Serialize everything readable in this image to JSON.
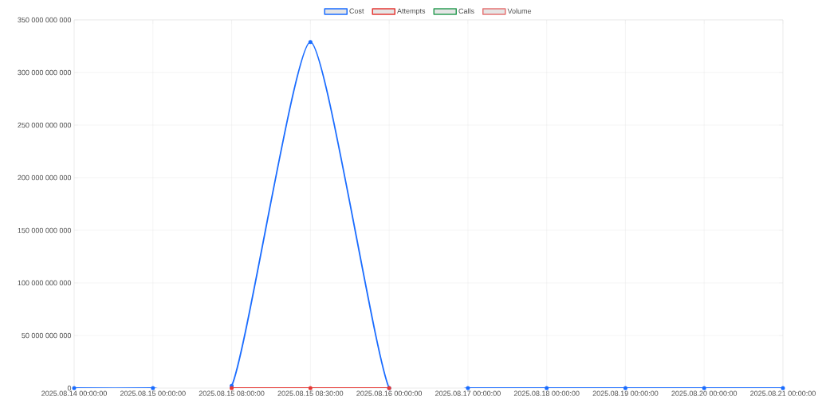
{
  "chart_data": {
    "type": "line",
    "categories": [
      "2025.08.14 00:00:00",
      "2025.08.15 00:00:00",
      "2025.08.15 08:00:00",
      "2025.08.15 08:30:00",
      "2025.08.16 00:00:00",
      "2025.08.17 00:00:00",
      "2025.08.18 00:00:00",
      "2025.08.19 00:00:00",
      "2025.08.20 00:00:00",
      "2025.08.21 00:00:00"
    ],
    "series": [
      {
        "name": "Cost",
        "color": "#1a6cff",
        "values": [
          0,
          0,
          2000000000,
          329000000000,
          0,
          0,
          0,
          0,
          0,
          0
        ]
      },
      {
        "name": "Attempts",
        "color": "#e53935",
        "values": [
          null,
          null,
          0,
          0,
          0,
          null,
          null,
          null,
          null,
          null
        ]
      },
      {
        "name": "Calls",
        "color": "#2e9e57",
        "values": [
          null,
          null,
          null,
          null,
          null,
          null,
          null,
          null,
          null,
          null
        ]
      },
      {
        "name": "Volume",
        "color": "#e57373",
        "values": [
          null,
          null,
          null,
          null,
          null,
          null,
          null,
          null,
          null,
          null
        ]
      }
    ],
    "ylim": [
      0,
      350000000000
    ],
    "yticks": [
      {
        "value": 0,
        "label": "0"
      },
      {
        "value": 50000000000,
        "label": "50 000 000 000"
      },
      {
        "value": 100000000000,
        "label": "100 000 000 000"
      },
      {
        "value": 150000000000,
        "label": "150 000 000 000"
      },
      {
        "value": 200000000000,
        "label": "200 000 000 000"
      },
      {
        "value": 250000000000,
        "label": "250 000 000 000"
      },
      {
        "value": 300000000000,
        "label": "300 000 000 000"
      },
      {
        "value": 350000000000,
        "label": "350 000 000 000"
      }
    ],
    "grid": true,
    "legend": "top",
    "marker": "circle",
    "line_style": "solid"
  }
}
